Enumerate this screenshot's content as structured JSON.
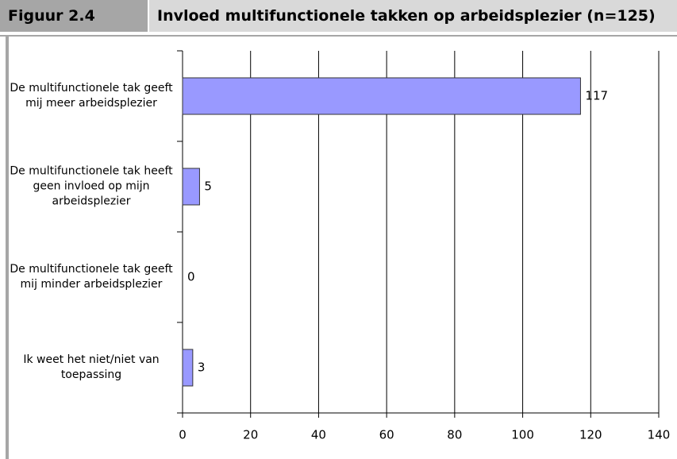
{
  "header": {
    "figure": "Figuur 2.4"
  },
  "chart_data": {
    "type": "hbar",
    "title": "Invloed multifunctionele takken op arbeidsplezier (n=125)",
    "categories": [
      "De multifunctionele tak geeft mij meer arbeidsplezier",
      "De multifunctionele tak heeft geen invloed op mijn arbeidsplezier",
      "De multifunctionele tak geeft mij minder arbeidsplezier",
      "Ik weet het niet/niet van toepassing"
    ],
    "values": [
      117,
      5,
      0,
      3
    ],
    "color": "#9999ff",
    "xlim": [
      0,
      140
    ],
    "xticks": [
      0,
      20,
      40,
      60,
      80,
      100,
      120,
      140
    ],
    "grid": true
  }
}
